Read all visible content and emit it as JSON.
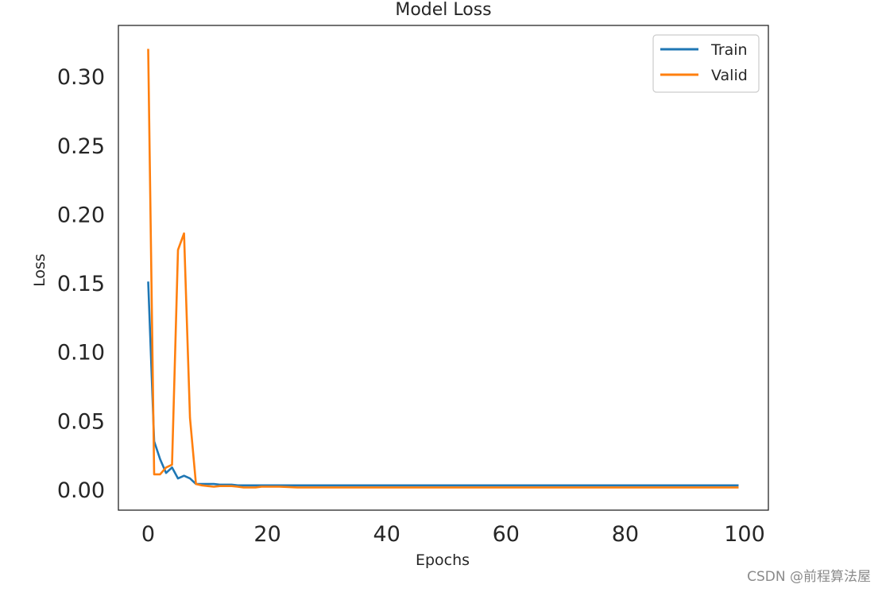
{
  "chart_data": {
    "type": "line",
    "title": "Model Loss",
    "xlabel": "Epochs",
    "ylabel": "Loss",
    "xlim": [
      -5,
      104
    ],
    "ylim": [
      -0.015,
      0.337
    ],
    "xticks": [
      0,
      20,
      40,
      60,
      80,
      100
    ],
    "xtick_labels": [
      "0",
      "20",
      "40",
      "60",
      "80",
      "100"
    ],
    "yticks": [
      0.0,
      0.05,
      0.1,
      0.15,
      0.2,
      0.25,
      0.3
    ],
    "ytick_labels": [
      "0.00",
      "0.05",
      "0.10",
      "0.15",
      "0.20",
      "0.25",
      "0.30"
    ],
    "grid": false,
    "legend": "top-right",
    "x": [
      0,
      1,
      2,
      3,
      4,
      5,
      6,
      7,
      8,
      9,
      10,
      11,
      12,
      13,
      14,
      15,
      16,
      17,
      18,
      19,
      20,
      22,
      25,
      30,
      35,
      40,
      50,
      60,
      70,
      80,
      90,
      99
    ],
    "series": [
      {
        "name": "Train",
        "color": "#1f77b4",
        "values": [
          0.151,
          0.035,
          0.022,
          0.012,
          0.016,
          0.008,
          0.01,
          0.008,
          0.004,
          0.004,
          0.004,
          0.004,
          0.0035,
          0.0035,
          0.0035,
          0.003,
          0.003,
          0.003,
          0.003,
          0.003,
          0.003,
          0.003,
          0.003,
          0.003,
          0.003,
          0.003,
          0.003,
          0.003,
          0.003,
          0.003,
          0.003,
          0.003
        ]
      },
      {
        "name": "Valid",
        "color": "#ff7f0e",
        "values": [
          0.32,
          0.011,
          0.011,
          0.016,
          0.018,
          0.174,
          0.186,
          0.052,
          0.004,
          0.003,
          0.0025,
          0.002,
          0.0025,
          0.0025,
          0.0025,
          0.002,
          0.0015,
          0.0015,
          0.0015,
          0.002,
          0.002,
          0.002,
          0.0015,
          0.0015,
          0.0015,
          0.0015,
          0.0015,
          0.0015,
          0.0015,
          0.0015,
          0.0015,
          0.0015
        ]
      }
    ]
  },
  "watermark": "CSDN @前程算法屋"
}
